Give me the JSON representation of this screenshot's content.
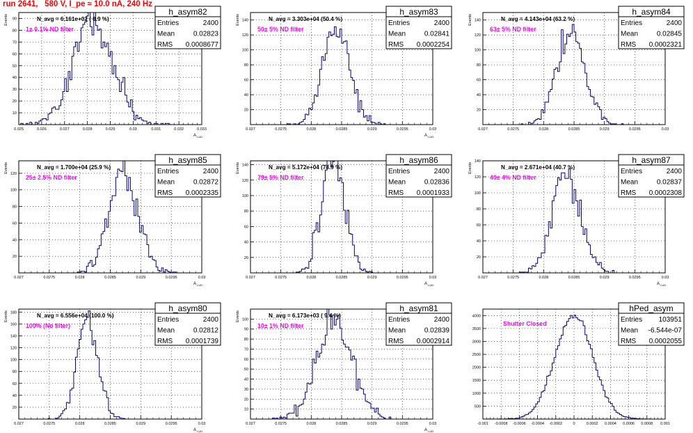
{
  "page": {
    "run_title": "run 2641,   580 V, I_pe ≈ 10.0 nA, 240 Hz",
    "frame_color": "#000000",
    "hist_color": "#000080",
    "annotation_color": "#ff00ff"
  },
  "chart_data": [
    {
      "type": "histogram",
      "name": "h_asym82",
      "stats": {
        "entries_label": "Entries",
        "entries": "2400",
        "mean_label": "Mean",
        "mean": "0.02823",
        "rms_label": "RMS",
        "rms": "0.0008677"
      },
      "navg": "N_avg = 6.161e+02 ( 0.9 %)",
      "filter": "1± 0.1% ND filter",
      "ylabel": "Events",
      "xlabel": "A_{LUD}",
      "xlim": [
        0.025,
        0.033
      ],
      "ylim": [
        0,
        95
      ],
      "xticks": [
        "0.025",
        "0.026",
        "0.027",
        "0.028",
        "0.029",
        "0.03",
        "0.031",
        "0.032",
        "0.033"
      ],
      "yticks": [
        "10",
        "20",
        "30",
        "40",
        "50",
        "60",
        "70",
        "80",
        "90"
      ],
      "ytick_values": [
        10,
        20,
        30,
        40,
        50,
        60,
        70,
        80,
        90
      ],
      "mean_value": 0.02823,
      "rms_value": 0.0008677,
      "entries_value": 2400
    },
    {
      "type": "histogram",
      "name": "h_asym83",
      "stats": {
        "entries_label": "Entries",
        "entries": "2400",
        "mean_label": "Mean",
        "mean": "0.02841",
        "rms_label": "RMS",
        "rms": "0.0002254"
      },
      "navg": "N_avg = 3.303e+04 (50.4 %)",
      "filter": "50± 5% ND filter",
      "ylabel": "Events",
      "xlabel": "A_{LUD}",
      "xlim": [
        0.027,
        0.03
      ],
      "ylim": [
        0,
        150
      ],
      "xticks": [
        "0.027",
        "0.0275",
        "0.028",
        "0.0285",
        "0.029",
        "0.0295",
        "0.03"
      ],
      "yticks": [
        "20",
        "40",
        "60",
        "80",
        "100",
        "120",
        "140"
      ],
      "ytick_values": [
        20,
        40,
        60,
        80,
        100,
        120,
        140
      ],
      "mean_value": 0.02841,
      "rms_value": 0.0002254,
      "entries_value": 2400
    },
    {
      "type": "histogram",
      "name": "h_asym84",
      "stats": {
        "entries_label": "Entries",
        "entries": "2400",
        "mean_label": "Mean",
        "mean": "0.02845",
        "rms_label": "RMS",
        "rms": "0.0002321"
      },
      "navg": "N_avg = 4.143e+04 (63.2 %)",
      "filter": "63± 5% ND filter",
      "ylabel": "Events",
      "xlabel": "",
      "xlim": [
        0.027,
        0.03
      ],
      "ylim": [
        0,
        150
      ],
      "xticks": [
        "0.027",
        "0.0275",
        "0.028",
        "0.0285",
        "0.029",
        "0.0295",
        "0.03"
      ],
      "yticks": [
        "20",
        "40",
        "60",
        "80",
        "100",
        "120",
        "140"
      ],
      "ytick_values": [
        20,
        40,
        60,
        80,
        100,
        120,
        140
      ],
      "mean_value": 0.02845,
      "rms_value": 0.0002321,
      "entries_value": 2400
    },
    {
      "type": "histogram",
      "name": "h_asym85",
      "stats": {
        "entries_label": "Entries",
        "entries": "2400",
        "mean_label": "Mean",
        "mean": "0.02872",
        "rms_label": "RMS",
        "rms": "0.0002335"
      },
      "navg": "N_avg = 1.700e+04 (25.9 %)",
      "filter": "25± 2.5% ND filter",
      "ylabel": "Events",
      "xlabel": "A_{LUD}",
      "xlim": [
        0.027,
        0.03
      ],
      "ylim": [
        0,
        135
      ],
      "xticks": [
        "0.027",
        "0.0275",
        "0.028",
        "0.0285",
        "0.029",
        "0.0295",
        "0.03"
      ],
      "yticks": [
        "20",
        "40",
        "60",
        "80",
        "100",
        "120"
      ],
      "ytick_values": [
        20,
        40,
        60,
        80,
        100,
        120
      ],
      "mean_value": 0.02872,
      "rms_value": 0.0002335,
      "entries_value": 2400
    },
    {
      "type": "histogram",
      "name": "h_asym86",
      "stats": {
        "entries_label": "Entries",
        "entries": "2400",
        "mean_label": "Mean",
        "mean": "0.02836",
        "rms_label": "RMS",
        "rms": "0.0001933"
      },
      "navg": "N_avg = 5.172e+04 (78.9 %)",
      "filter": "79± 5% ND filter",
      "ylabel": "Events",
      "xlabel": "A_{LUD}",
      "xlim": [
        0.027,
        0.03
      ],
      "ylim": [
        0,
        145
      ],
      "xticks": [
        "0.027",
        "0.0275",
        "0.028",
        "0.0285",
        "0.029",
        "0.0295",
        "0.03"
      ],
      "yticks": [
        "20",
        "40",
        "60",
        "80",
        "100",
        "120",
        "140"
      ],
      "ytick_values": [
        20,
        40,
        60,
        80,
        100,
        120,
        140
      ],
      "mean_value": 0.02836,
      "rms_value": 0.0001933,
      "entries_value": 2400
    },
    {
      "type": "histogram",
      "name": "h_asym87",
      "stats": {
        "entries_label": "Entries",
        "entries": "2400",
        "mean_label": "Mean",
        "mean": "0.02837",
        "rms_label": "RMS",
        "rms": "0.0002308"
      },
      "navg": "N_avg = 2.671e+04 (40.7 %)",
      "filter": "40± 4% ND filter",
      "ylabel": "Events",
      "xlabel": "A_{LUD}",
      "xlim": [
        0.027,
        0.03
      ],
      "ylim": [
        0,
        140
      ],
      "xticks": [
        "0.027",
        "0.0275",
        "0.028",
        "0.0285",
        "0.029",
        "0.0295",
        "0.03"
      ],
      "yticks": [
        "20",
        "40",
        "60",
        "80",
        "100",
        "120",
        "140"
      ],
      "ytick_values": [
        20,
        40,
        60,
        80,
        100,
        120,
        140
      ],
      "mean_value": 0.02837,
      "rms_value": 0.0002308,
      "entries_value": 2400
    },
    {
      "type": "histogram",
      "name": "h_asym80",
      "stats": {
        "entries_label": "Entries",
        "entries": "2400",
        "mean_label": "Mean",
        "mean": "0.02812",
        "rms_label": "RMS",
        "rms": "0.0001739"
      },
      "navg": "N_avg = 6.556e+04 (100.0 %)",
      "filter": "100% (No filter)",
      "ylabel": "Events",
      "xlabel": "A_{LUD}",
      "xlim": [
        0.027,
        0.03
      ],
      "ylim": [
        0,
        185
      ],
      "xticks": [
        "0.027",
        "0.0275",
        "0.028",
        "0.0285",
        "0.029",
        "0.0295",
        "0.03"
      ],
      "yticks": [
        "20",
        "40",
        "60",
        "80",
        "100",
        "120",
        "140",
        "160",
        "180"
      ],
      "ytick_values": [
        20,
        40,
        60,
        80,
        100,
        120,
        140,
        160,
        180
      ],
      "mean_value": 0.02812,
      "rms_value": 0.0001739,
      "entries_value": 2400
    },
    {
      "type": "histogram",
      "name": "h_asym81",
      "stats": {
        "entries_label": "Entries",
        "entries": "2400",
        "mean_label": "Mean",
        "mean": "0.02839",
        "rms_label": "RMS",
        "rms": "0.0002914"
      },
      "navg": "N_avg = 6.173e+03 ( 9.4 %)",
      "filter": "10± 1% ND filter",
      "ylabel": "Events",
      "xlabel": "A_{LUD}",
      "xlim": [
        0.027,
        0.03
      ],
      "ylim": [
        0,
        110
      ],
      "xticks": [
        "0.027",
        "0.0275",
        "0.028",
        "0.0285",
        "0.029",
        "0.0295",
        "0.03"
      ],
      "yticks": [
        "10",
        "20",
        "30",
        "40",
        "50",
        "60",
        "70",
        "80",
        "90",
        "100"
      ],
      "ytick_values": [
        10,
        20,
        30,
        40,
        50,
        60,
        70,
        80,
        90,
        100
      ],
      "mean_value": 0.02839,
      "rms_value": 0.0002914,
      "entries_value": 2400
    },
    {
      "type": "histogram",
      "name": "hPed_asym",
      "stats": {
        "entries_label": "Entries",
        "entries": "103951",
        "mean_label": "Mean",
        "mean": "-6.544e-07",
        "rms_label": "RMS",
        "rms": "0.0002055"
      },
      "navg": "",
      "filter": "Shutter Closed",
      "ylabel": "",
      "xlabel": "",
      "xlim": [
        -0.001,
        0.001
      ],
      "ylim": [
        0,
        4250
      ],
      "xticks": [
        "-0.001",
        "-0.0008",
        "-0.0006",
        "-0.0004",
        "-0.0002",
        "0",
        "0.0002",
        "0.0004",
        "0.0006",
        "0.0008",
        "0.001"
      ],
      "yticks": [
        "500",
        "1000",
        "1500",
        "2000",
        "2500",
        "3000",
        "3500",
        "4000"
      ],
      "ytick_values": [
        500,
        1000,
        1500,
        2000,
        2500,
        3000,
        3500,
        4000
      ],
      "mean_value": -6.544e-07,
      "rms_value": 0.0002055,
      "entries_value": 103951
    }
  ]
}
